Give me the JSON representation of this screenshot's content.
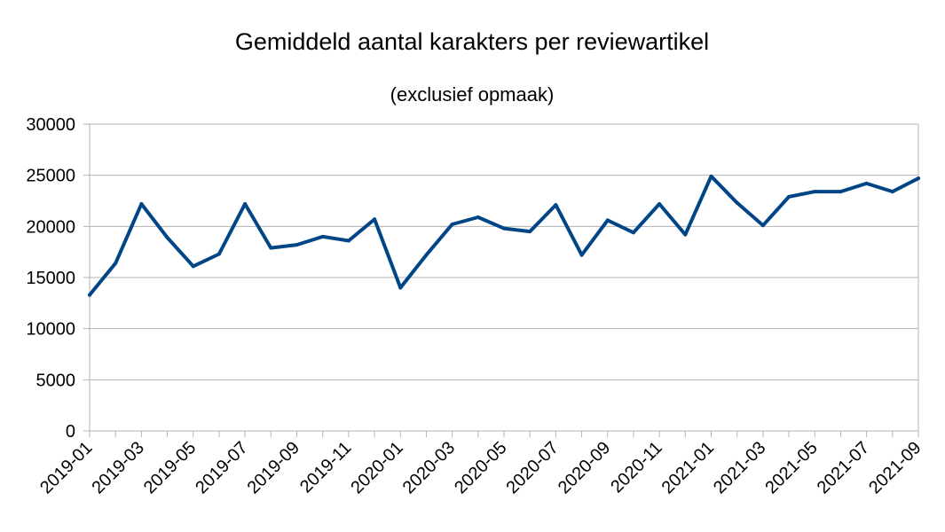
{
  "chart_data": {
    "type": "line",
    "title": "Gemiddeld aantal karakters per reviewartikel",
    "subtitle": "(exclusief opmaak)",
    "xlabel": "",
    "ylabel": "",
    "ylim": [
      0,
      30000
    ],
    "yticks": [
      0,
      5000,
      10000,
      15000,
      20000,
      25000,
      30000
    ],
    "grid": true,
    "legend": "none",
    "x": [
      "2019-01",
      "2019-02",
      "2019-03",
      "2019-04",
      "2019-05",
      "2019-06",
      "2019-07",
      "2019-08",
      "2019-09",
      "2019-10",
      "2019-11",
      "2019-12",
      "2020-01",
      "2020-02",
      "2020-03",
      "2020-04",
      "2020-05",
      "2020-06",
      "2020-07",
      "2020-08",
      "2020-09",
      "2020-10",
      "2020-11",
      "2020-12",
      "2021-01",
      "2021-02",
      "2021-03",
      "2021-04",
      "2021-05",
      "2021-06",
      "2021-07",
      "2021-08",
      "2021-09"
    ],
    "xtick_labels": [
      "2019-01",
      "2019-03",
      "2019-05",
      "2019-07",
      "2019-09",
      "2019-11",
      "2020-01",
      "2020-03",
      "2020-05",
      "2020-07",
      "2020-09",
      "2020-11",
      "2021-01",
      "2021-03",
      "2021-05",
      "2021-07",
      "2021-09"
    ],
    "series": [
      {
        "color": "#004586",
        "values": [
          13300,
          16400,
          22200,
          18900,
          16100,
          17300,
          22200,
          17900,
          18200,
          19000,
          18600,
          20700,
          14000,
          17200,
          20200,
          20900,
          19800,
          19500,
          22100,
          17200,
          20600,
          19400,
          22200,
          19200,
          24900,
          22300,
          20100,
          22900,
          23400,
          23400,
          24200,
          23400,
          24700
        ]
      }
    ]
  }
}
